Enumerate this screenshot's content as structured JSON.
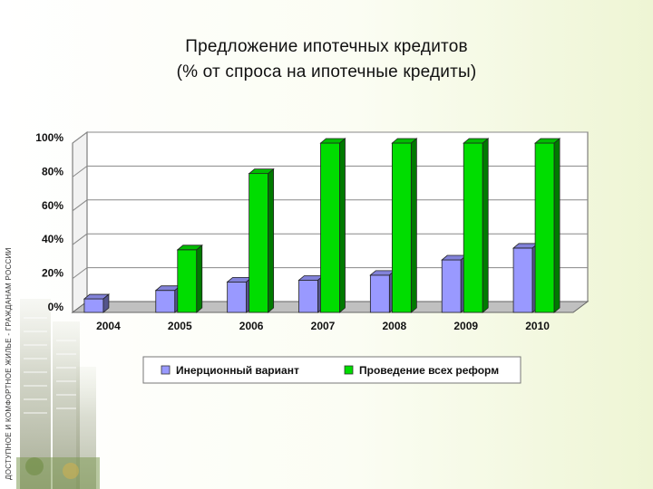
{
  "title_lines": [
    "Предложение ипотечных кредитов",
    "(% от спроса на ипотечные кредиты)"
  ],
  "side_banner_text": "ДОСТУПНОЕ И КОМФОРТНОЕ ЖИЛЬЕ - ГРАЖДАНАМ РОССИИ",
  "chart_data": {
    "type": "bar",
    "title": "Предложение ипотечных кредитов (% от спроса на ипотечные кредиты)",
    "categories": [
      "2004",
      "2005",
      "2006",
      "2007",
      "2008",
      "2009",
      "2010"
    ],
    "series": [
      {
        "name": "Инерционный вариант",
        "color": "#9999ff",
        "values": [
          8,
          13,
          18,
          19,
          22,
          31,
          38
        ]
      },
      {
        "name": "Проведение всех реформ",
        "color": "#00dd00",
        "values": [
          null,
          37,
          82,
          100,
          100,
          100,
          100
        ]
      }
    ],
    "ylim": [
      0,
      100
    ],
    "yticks": [
      "0%",
      "20%",
      "40%",
      "60%",
      "80%",
      "100%"
    ],
    "grid": true,
    "legend_position": "bottom"
  }
}
